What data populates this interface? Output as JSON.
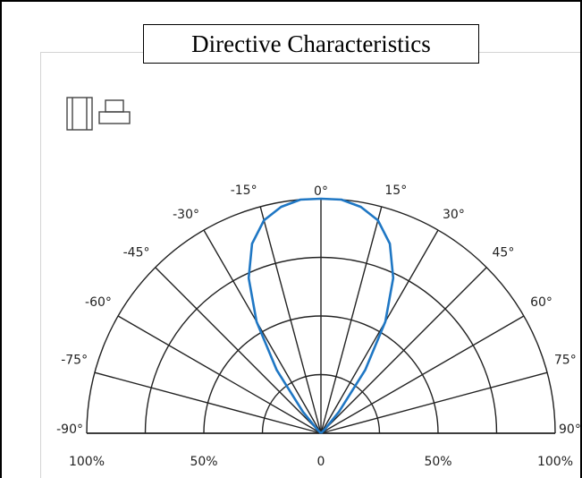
{
  "chart_data": {
    "type": "polar-semicircle",
    "title": "Directive Characteristics",
    "angle_unit": "degrees",
    "angle_range": [
      -90,
      90
    ],
    "angle_ticks": [
      {
        "angle": -90,
        "label": "-90°"
      },
      {
        "angle": -75,
        "label": "-75°"
      },
      {
        "angle": -60,
        "label": "-60°"
      },
      {
        "angle": -45,
        "label": "-45°"
      },
      {
        "angle": -30,
        "label": "-30°"
      },
      {
        "angle": -15,
        "label": "-15°"
      },
      {
        "angle": 0,
        "label": "0°"
      },
      {
        "angle": 15,
        "label": "15°"
      },
      {
        "angle": 30,
        "label": "30°"
      },
      {
        "angle": 45,
        "label": "45°"
      },
      {
        "angle": 60,
        "label": "60°"
      },
      {
        "angle": 75,
        "label": "75°"
      },
      {
        "angle": 90,
        "label": "90°"
      }
    ],
    "radial_unit": "%",
    "radial_range": [
      0,
      100
    ],
    "radial_gridlines": [
      25,
      50,
      75,
      100
    ],
    "radial_tick_labels": [
      {
        "side": "left",
        "value": 100,
        "label": "100%"
      },
      {
        "side": "left",
        "value": 50,
        "label": "50%"
      },
      {
        "side": "center",
        "value": 0,
        "label": "0"
      },
      {
        "side": "right",
        "value": 50,
        "label": "50%"
      },
      {
        "side": "right",
        "value": 100,
        "label": "100%"
      }
    ],
    "grid": true,
    "series": [
      {
        "color": "#1f77c4",
        "points": [
          {
            "angle": -45,
            "value": 2
          },
          {
            "angle": -40,
            "value": 12
          },
          {
            "angle": -35,
            "value": 33
          },
          {
            "angle": -30,
            "value": 55
          },
          {
            "angle": -25,
            "value": 73
          },
          {
            "angle": -20,
            "value": 86
          },
          {
            "angle": -15,
            "value": 94
          },
          {
            "angle": -10,
            "value": 98
          },
          {
            "angle": -5,
            "value": 100
          },
          {
            "angle": 0,
            "value": 100
          },
          {
            "angle": 5,
            "value": 100
          },
          {
            "angle": 10,
            "value": 98
          },
          {
            "angle": 15,
            "value": 94
          },
          {
            "angle": 20,
            "value": 86
          },
          {
            "angle": 25,
            "value": 73
          },
          {
            "angle": 30,
            "value": 55
          },
          {
            "angle": 35,
            "value": 33
          },
          {
            "angle": 40,
            "value": 12
          },
          {
            "angle": 45,
            "value": 2
          }
        ]
      }
    ]
  },
  "legend_icons": [
    {
      "name": "package-side-view-icon"
    },
    {
      "name": "package-top-view-icon"
    }
  ]
}
